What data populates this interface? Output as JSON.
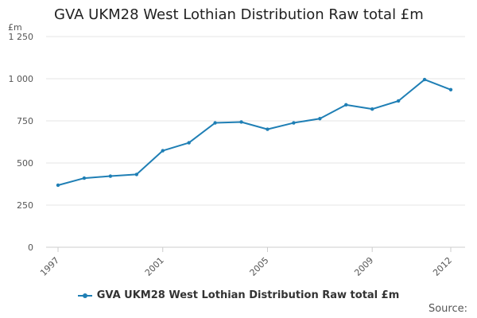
{
  "title": "GVA UKM28 West Lothian Distribution Raw total £m",
  "unit_label": "£m",
  "source_label": "Source:",
  "colors": {
    "series": "#1f7fb5",
    "grid": "#e6e6e6",
    "axis_text": "#555555"
  },
  "chart_data": {
    "type": "line",
    "title": "GVA UKM28 West Lothian Distribution Raw total £m",
    "ylabel": "£m",
    "xlabel": "",
    "x": [
      1997,
      1998,
      1999,
      2000,
      2001,
      2002,
      2003,
      2004,
      2005,
      2006,
      2007,
      2008,
      2009,
      2010,
      2011,
      2012
    ],
    "series": [
      {
        "name": "GVA UKM28 West Lothian Distribution Raw total £m",
        "values": [
          368,
          410,
          422,
          432,
          573,
          620,
          738,
          743,
          700,
          738,
          763,
          845,
          820,
          868,
          995,
          935
        ]
      }
    ],
    "ylim": [
      0,
      1250
    ],
    "yticks": [
      0,
      250,
      500,
      750,
      1000,
      1250
    ],
    "ytick_labels": [
      "0",
      "250",
      "500",
      "750",
      "1 000",
      "1 250"
    ],
    "xticks": [
      1997,
      2001,
      2005,
      2009,
      2012
    ],
    "grid": true,
    "legend_position": "bottom"
  }
}
